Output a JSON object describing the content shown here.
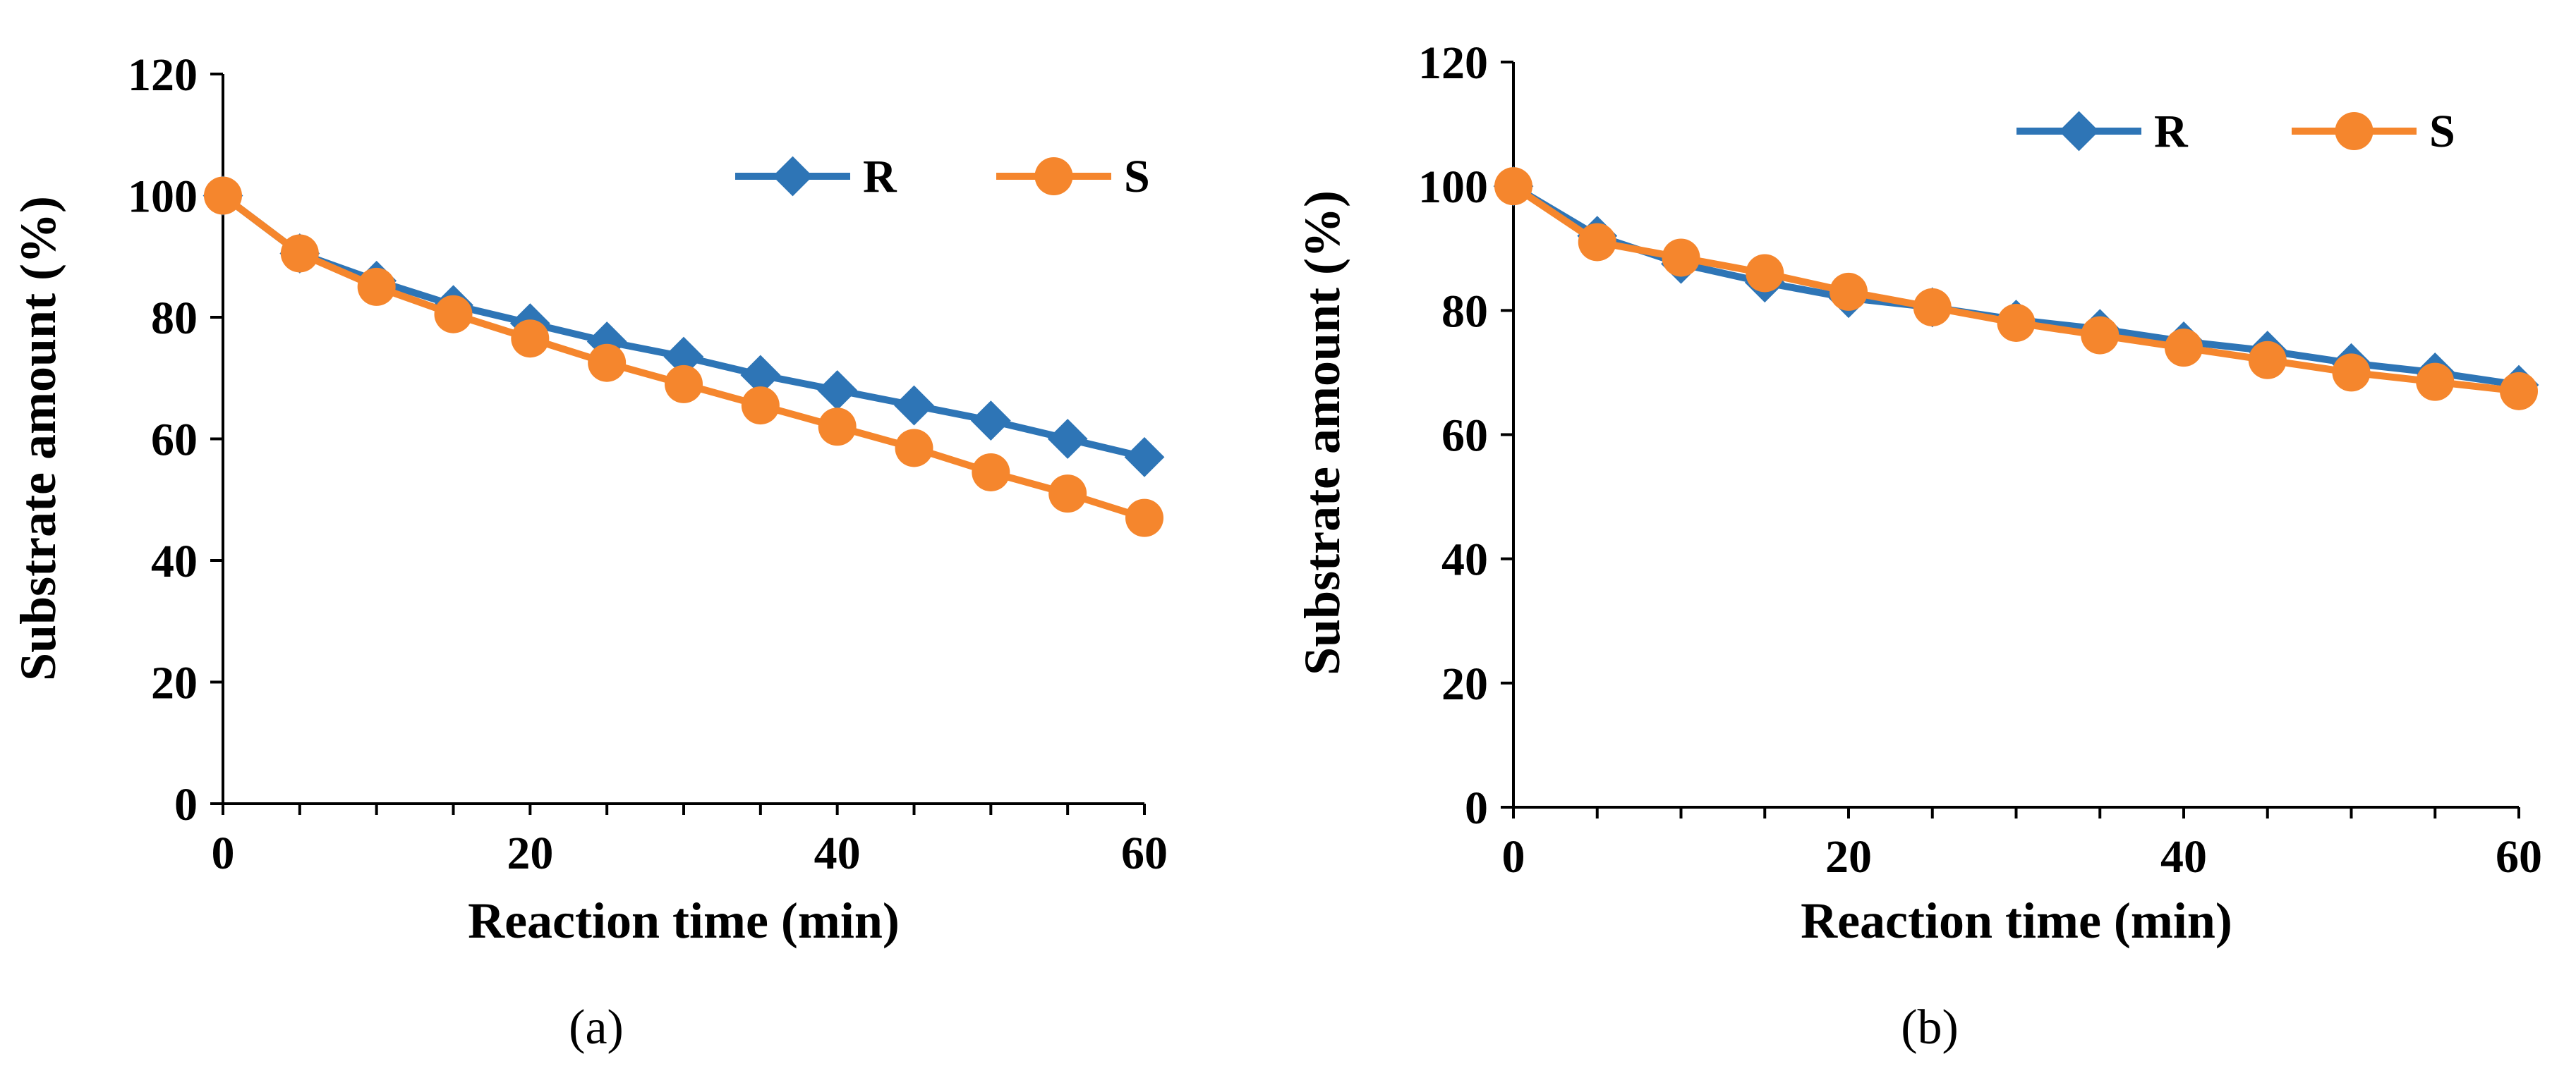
{
  "chart_data": [
    {
      "type": "line",
      "panel_label": "(a)",
      "x": [
        0,
        5,
        10,
        15,
        20,
        25,
        30,
        35,
        40,
        45,
        50,
        55,
        60
      ],
      "series": [
        {
          "name": "R",
          "marker": "diamond",
          "color": "#2E75B6",
          "values": [
            100,
            90.5,
            86,
            82,
            79,
            76,
            73.5,
            70.5,
            68,
            65.5,
            63,
            60,
            57
          ]
        },
        {
          "name": "S",
          "marker": "circle",
          "color": "#F5862D",
          "values": [
            100,
            90.5,
            85,
            80.5,
            76.5,
            72.5,
            69,
            65.5,
            62,
            58.5,
            54.5,
            51,
            47
          ]
        }
      ],
      "xlabel": "Reaction time (min)",
      "ylabel": "Substrate amount (%)",
      "xlim": [
        0,
        60
      ],
      "ylim": [
        0,
        120
      ],
      "x_ticks": [
        "0",
        "20",
        "40",
        "60"
      ],
      "y_ticks": [
        "0",
        "20",
        "40",
        "60",
        "80",
        "100",
        "120"
      ],
      "grid": false,
      "legend_position": "top-right"
    },
    {
      "type": "line",
      "panel_label": "(b)",
      "x": [
        0,
        5,
        10,
        15,
        20,
        25,
        30,
        35,
        40,
        45,
        50,
        55,
        60
      ],
      "series": [
        {
          "name": "R",
          "marker": "diamond",
          "color": "#2E75B6",
          "values": [
            100,
            92,
            87.5,
            84.5,
            82,
            80.5,
            78.5,
            77,
            75,
            73.5,
            71.5,
            70,
            68
          ]
        },
        {
          "name": "S",
          "marker": "circle",
          "color": "#F5862D",
          "values": [
            100,
            91,
            88.5,
            86,
            83,
            80.5,
            78,
            76,
            74,
            72,
            70,
            68.5,
            67
          ]
        }
      ],
      "xlabel": "Reaction time (min)",
      "ylabel": "Substrate amount (%)",
      "xlim": [
        0,
        60
      ],
      "ylim": [
        0,
        120
      ],
      "x_ticks": [
        "0",
        "20",
        "40",
        "60"
      ],
      "y_ticks": [
        "0",
        "20",
        "40",
        "60",
        "80",
        "100",
        "120"
      ],
      "grid": false,
      "legend_position": "top-right"
    }
  ]
}
